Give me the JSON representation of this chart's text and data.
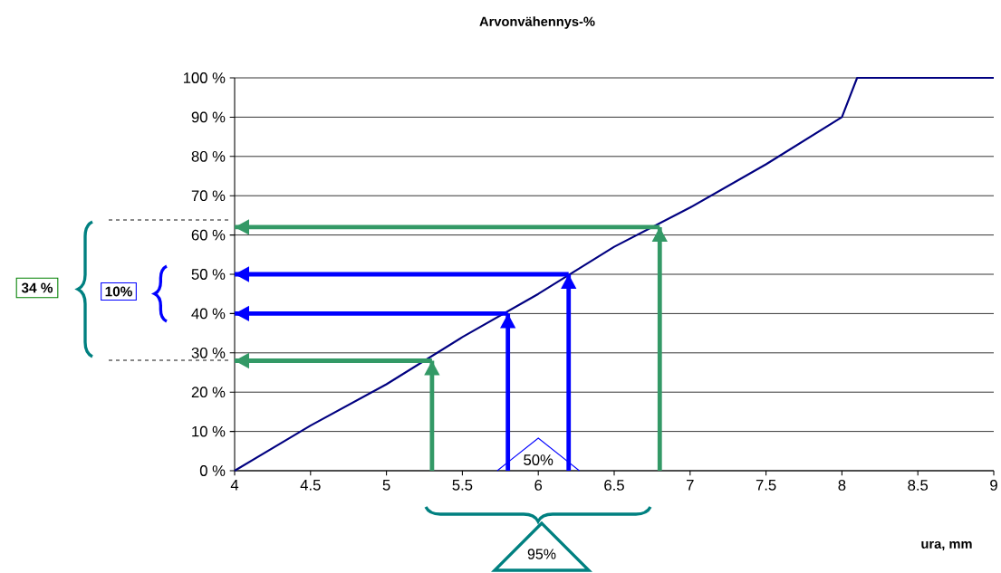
{
  "chart_data": {
    "type": "line",
    "title": "Arvonvähennys-%",
    "xlabel": "ura, mm",
    "xlim": [
      4,
      9
    ],
    "xticks": [
      4,
      4.5,
      5,
      5.5,
      6,
      6.5,
      7,
      7.5,
      8,
      8.5,
      9
    ],
    "ylim": [
      0,
      100
    ],
    "yticks": [
      {
        "value": 0,
        "label": "0 %"
      },
      {
        "value": 10,
        "label": "10 %"
      },
      {
        "value": 20,
        "label": "20 %"
      },
      {
        "value": 30,
        "label": "30 %"
      },
      {
        "value": 40,
        "label": "40 %"
      },
      {
        "value": 50,
        "label": "50 %"
      },
      {
        "value": 60,
        "label": "60 %"
      },
      {
        "value": 70,
        "label": "70 %"
      },
      {
        "value": 80,
        "label": "80 %"
      },
      {
        "value": 90,
        "label": "90 %"
      },
      {
        "value": 100,
        "label": "100 %"
      }
    ],
    "grid": "y",
    "marker": "none",
    "series": [
      {
        "color": "#000080",
        "x": [
          4,
          4.5,
          5,
          5.5,
          6,
          6.5,
          7,
          7.5,
          8,
          8.1,
          9
        ],
        "values": [
          0,
          11.5,
          22,
          34,
          45,
          57,
          67,
          78,
          90,
          100,
          100
        ]
      },
      {
        "color": "#339966",
        "x": [
          5.3,
          5.3
        ],
        "values": [
          0,
          28
        ]
      },
      {
        "color": "#339966",
        "x": [
          5.3,
          4
        ],
        "values": [
          28,
          28
        ]
      },
      {
        "color": "#0000ff",
        "x": [
          5.8,
          5.8
        ],
        "values": [
          0,
          40
        ]
      },
      {
        "color": "#0000ff",
        "x": [
          5.8,
          4
        ],
        "values": [
          40,
          40
        ]
      },
      {
        "color": "#0000ff",
        "x": [
          6.2,
          6.2
        ],
        "values": [
          0,
          50
        ]
      },
      {
        "color": "#0000ff",
        "x": [
          6.2,
          4
        ],
        "values": [
          50,
          50
        ]
      },
      {
        "color": "#339966",
        "x": [
          6.8,
          6.8
        ],
        "values": [
          0,
          62
        ]
      },
      {
        "color": "#339966",
        "x": [
          6.8,
          4
        ],
        "values": [
          62,
          62
        ]
      }
    ],
    "annotations": [
      "34 %",
      "10%",
      "50%",
      "95%"
    ]
  }
}
